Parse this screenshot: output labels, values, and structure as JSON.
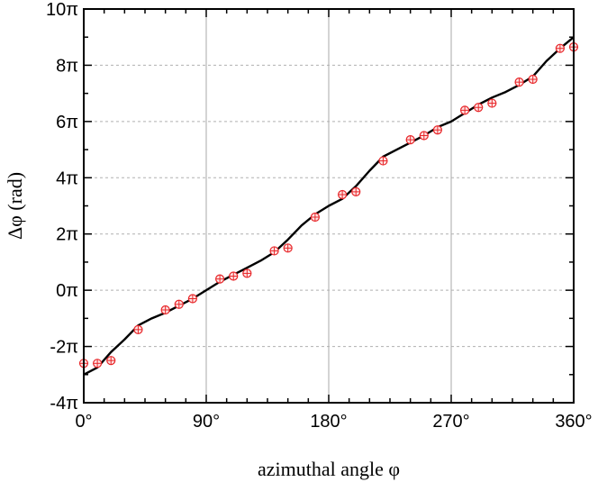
{
  "chart_data": {
    "type": "scatter",
    "xlabel": "azimuthal angle φ",
    "ylabel": "Δφ (rad)",
    "x_unit": "degrees",
    "y_unit": "π rad",
    "xlim": [
      0,
      360
    ],
    "ylim": [
      -4,
      10
    ],
    "x_ticks": [
      0,
      90,
      180,
      270,
      360
    ],
    "x_tick_labels": [
      "0°",
      "90°",
      "180°",
      "270°",
      "360°"
    ],
    "y_ticks": [
      -4,
      -2,
      0,
      2,
      4,
      6,
      8,
      10
    ],
    "y_tick_labels": [
      "-4π",
      "-2π",
      "0π",
      "2π",
      "4π",
      "6π",
      "8π",
      "10π"
    ],
    "grid": {
      "x_major": "solid-gray",
      "y_major": "dashed-gray"
    },
    "series": [
      {
        "kind": "markers",
        "marker": "circle-plus",
        "color": "#e8272a",
        "x": [
          0,
          10,
          20,
          40,
          60,
          70,
          80,
          100,
          110,
          120,
          140,
          150,
          170,
          190,
          200,
          220,
          240,
          250,
          260,
          280,
          290,
          300,
          320,
          330,
          350,
          360
        ],
        "y": [
          -2.6,
          -2.6,
          -2.5,
          -1.4,
          -0.7,
          -0.5,
          -0.3,
          0.4,
          0.5,
          0.6,
          1.4,
          1.5,
          2.6,
          3.4,
          3.5,
          4.6,
          5.35,
          5.5,
          5.7,
          6.4,
          6.5,
          6.65,
          7.4,
          7.5,
          8.6,
          8.65
        ]
      },
      {
        "kind": "line",
        "color": "#000000",
        "x": [
          0,
          10,
          20,
          30,
          40,
          50,
          60,
          70,
          80,
          90,
          100,
          110,
          120,
          130,
          140,
          150,
          160,
          170,
          180,
          190,
          200,
          210,
          220,
          230,
          240,
          250,
          260,
          270,
          280,
          290,
          300,
          310,
          320,
          330,
          340,
          350,
          360
        ],
        "y": [
          -3.0,
          -2.75,
          -2.2,
          -1.75,
          -1.25,
          -1.0,
          -0.8,
          -0.55,
          -0.3,
          0.0,
          0.3,
          0.55,
          0.8,
          1.05,
          1.35,
          1.8,
          2.3,
          2.7,
          3.0,
          3.25,
          3.7,
          4.25,
          4.75,
          5.0,
          5.25,
          5.5,
          5.8,
          6.0,
          6.3,
          6.6,
          6.85,
          7.05,
          7.3,
          7.6,
          8.15,
          8.6,
          9.0
        ]
      }
    ]
  }
}
